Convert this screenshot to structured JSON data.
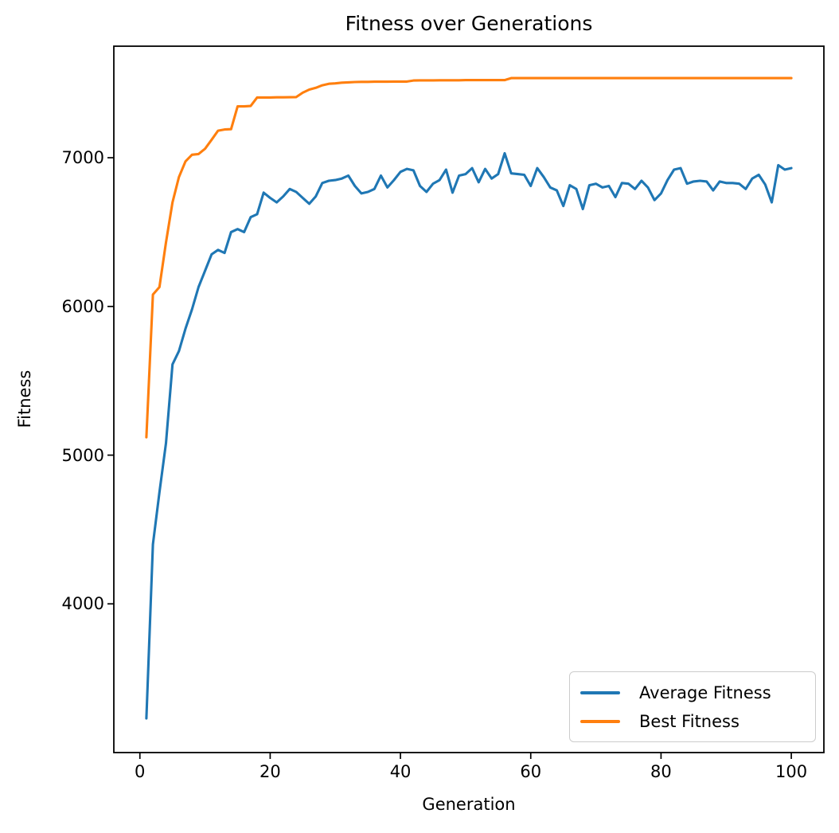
{
  "chart_data": {
    "type": "line",
    "title": "Fitness over Generations",
    "xlabel": "Generation",
    "ylabel": "Fitness",
    "legend_position": "lower right",
    "grid": false,
    "xlim": [
      -4,
      105
    ],
    "ylim": [
      3000,
      7750
    ],
    "x_ticks": [
      0,
      20,
      40,
      60,
      80,
      100
    ],
    "y_ticks": [
      4000,
      5000,
      6000,
      7000
    ],
    "x": [
      1,
      2,
      3,
      4,
      5,
      6,
      7,
      8,
      9,
      10,
      11,
      12,
      13,
      14,
      15,
      16,
      17,
      18,
      19,
      20,
      21,
      22,
      23,
      24,
      25,
      26,
      27,
      28,
      29,
      30,
      31,
      32,
      33,
      34,
      35,
      36,
      37,
      38,
      39,
      40,
      41,
      42,
      43,
      44,
      45,
      46,
      47,
      48,
      49,
      50,
      51,
      52,
      53,
      54,
      55,
      56,
      57,
      58,
      59,
      60,
      61,
      62,
      63,
      64,
      65,
      66,
      67,
      68,
      69,
      70,
      71,
      72,
      73,
      74,
      75,
      76,
      77,
      78,
      79,
      80,
      81,
      82,
      83,
      84,
      85,
      86,
      87,
      88,
      89,
      90,
      91,
      92,
      93,
      94,
      95,
      96,
      97,
      98,
      99,
      100
    ],
    "series": [
      {
        "name": "Average Fitness",
        "color": "#1f77b4",
        "values": [
          3230,
          4400,
          4750,
          5080,
          5610,
          5700,
          5850,
          5980,
          6130,
          6240,
          6350,
          6380,
          6360,
          6500,
          6520,
          6500,
          6600,
          6620,
          6765,
          6730,
          6700,
          6740,
          6790,
          6770,
          6730,
          6690,
          6740,
          6830,
          6845,
          6850,
          6860,
          6880,
          6810,
          6760,
          6770,
          6790,
          6880,
          6800,
          6850,
          6905,
          6925,
          6915,
          6810,
          6770,
          6825,
          6850,
          6920,
          6765,
          6880,
          6890,
          6930,
          6835,
          6925,
          6860,
          6890,
          7030,
          6895,
          6890,
          6885,
          6810,
          6930,
          6870,
          6800,
          6780,
          6675,
          6815,
          6790,
          6655,
          6815,
          6825,
          6800,
          6810,
          6735,
          6830,
          6825,
          6790,
          6845,
          6800,
          6715,
          6760,
          6850,
          6920,
          6930,
          6825,
          6840,
          6845,
          6840,
          6780,
          6840,
          6830,
          6830,
          6825,
          6790,
          6860,
          6885,
          6820,
          6700,
          6950,
          6920,
          6930
        ]
      },
      {
        "name": "Best Fitness",
        "color": "#ff7f0e",
        "values": [
          5120,
          6080,
          6130,
          6430,
          6700,
          6870,
          6975,
          7020,
          7025,
          7060,
          7120,
          7182,
          7190,
          7192,
          7345,
          7345,
          7348,
          7405,
          7405,
          7405,
          7406,
          7406,
          7407,
          7408,
          7437,
          7458,
          7470,
          7487,
          7497,
          7500,
          7505,
          7507,
          7509,
          7510,
          7510,
          7511,
          7511,
          7511,
          7512,
          7512,
          7512,
          7519,
          7520,
          7520,
          7520,
          7521,
          7521,
          7521,
          7521,
          7522,
          7522,
          7522,
          7522,
          7522,
          7522,
          7522,
          7535,
          7535,
          7535,
          7535,
          7535,
          7535,
          7535,
          7535,
          7535,
          7535,
          7535,
          7535,
          7535,
          7535,
          7535,
          7535,
          7535,
          7535,
          7535,
          7535,
          7535,
          7535,
          7535,
          7535,
          7535,
          7535,
          7535,
          7535,
          7535,
          7535,
          7535,
          7535,
          7535,
          7535,
          7535,
          7535,
          7535,
          7535,
          7535,
          7535,
          7535,
          7535,
          7535,
          7535
        ]
      }
    ]
  }
}
